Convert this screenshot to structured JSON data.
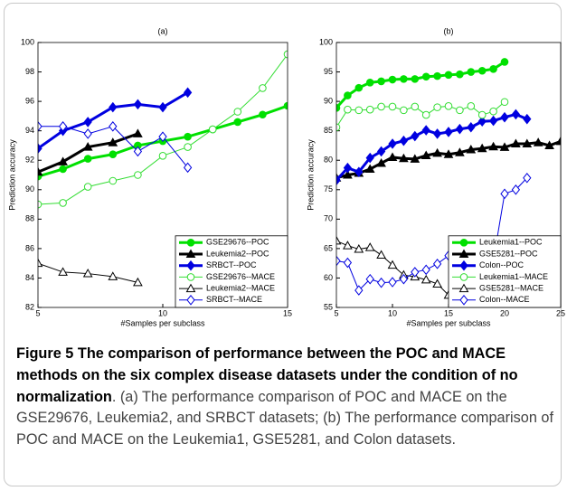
{
  "chart_data": [
    {
      "type": "line",
      "title": "(a)",
      "xlabel": "#Samples per subclass",
      "ylabel": "Prediction accuracy",
      "xlim": [
        5,
        15
      ],
      "xticks": [
        5,
        10,
        15
      ],
      "ylim": [
        82,
        100
      ],
      "yticks": [
        82,
        84,
        86,
        88,
        90,
        92,
        94,
        96,
        98,
        100
      ],
      "legend": "lower right",
      "series": [
        {
          "name": "GSE29676--POC",
          "color": "#00e000",
          "marker": "circle",
          "filled": true,
          "linewidth": 3,
          "x": [
            5,
            6,
            7,
            8,
            9,
            10,
            11,
            12,
            13,
            14,
            15
          ],
          "values": [
            90.9,
            91.4,
            92.1,
            92.4,
            93.0,
            93.3,
            93.6,
            94.1,
            94.6,
            95.1,
            95.7
          ]
        },
        {
          "name": "Leukemia2--POC",
          "color": "#000000",
          "marker": "triangle",
          "filled": true,
          "linewidth": 3,
          "x": [
            5,
            6,
            7,
            8,
            9
          ],
          "values": [
            91.2,
            91.9,
            92.9,
            93.2,
            93.8
          ]
        },
        {
          "name": "SRBCT--POC",
          "color": "#0000e0",
          "marker": "diamond",
          "filled": true,
          "linewidth": 3,
          "x": [
            5,
            6,
            7,
            8,
            9,
            10,
            11
          ],
          "values": [
            92.8,
            94.0,
            94.6,
            95.6,
            95.8,
            95.6,
            96.6
          ]
        },
        {
          "name": "GSE29676--MACE",
          "color": "#33dd33",
          "marker": "circle",
          "filled": false,
          "linewidth": 1,
          "x": [
            5,
            6,
            7,
            8,
            9,
            10,
            11,
            12,
            13,
            14,
            15
          ],
          "values": [
            89.0,
            89.1,
            90.2,
            90.6,
            91.0,
            92.3,
            92.9,
            94.1,
            95.3,
            96.9,
            99.2
          ]
        },
        {
          "name": "Leukemia2--MACE",
          "color": "#000000",
          "marker": "triangle",
          "filled": false,
          "linewidth": 1,
          "x": [
            5,
            6,
            7,
            8,
            9
          ],
          "values": [
            85.0,
            84.4,
            84.3,
            84.1,
            83.7
          ]
        },
        {
          "name": "SRBCT--MACE",
          "color": "#0000e0",
          "marker": "diamond",
          "filled": false,
          "linewidth": 1,
          "x": [
            5,
            6,
            7,
            8,
            9,
            10,
            11
          ],
          "values": [
            94.3,
            94.3,
            93.8,
            94.3,
            92.6,
            93.6,
            91.5
          ]
        }
      ]
    },
    {
      "type": "line",
      "title": "(b)",
      "xlabel": "#Samples per subclass",
      "ylabel": "Prediction accuracy",
      "xlim": [
        5,
        25
      ],
      "xticks": [
        5,
        10,
        15,
        20,
        25
      ],
      "ylim": [
        55,
        100
      ],
      "yticks": [
        55,
        60,
        65,
        70,
        75,
        80,
        85,
        90,
        95,
        100
      ],
      "legend": "lower right",
      "series": [
        {
          "name": "Leukemia1--POC",
          "color": "#00e000",
          "marker": "circle",
          "filled": true,
          "linewidth": 3,
          "x": [
            5,
            6,
            7,
            8,
            9,
            10,
            11,
            12,
            13,
            14,
            15,
            16,
            17,
            18,
            19,
            20
          ],
          "values": [
            88.9,
            91.0,
            92.3,
            93.2,
            93.4,
            93.7,
            93.8,
            93.8,
            94.2,
            94.3,
            94.5,
            94.6,
            95.0,
            95.2,
            95.5,
            96.7
          ]
        },
        {
          "name": "GSE5281--POC",
          "color": "#000000",
          "marker": "triangle",
          "filled": true,
          "linewidth": 3,
          "x": [
            5,
            6,
            7,
            8,
            9,
            10,
            11,
            12,
            13,
            14,
            15,
            16,
            17,
            18,
            19,
            20,
            21,
            22,
            23,
            24,
            25
          ],
          "values": [
            77.0,
            77.5,
            77.8,
            78.5,
            79.5,
            80.5,
            80.3,
            80.2,
            80.8,
            81.2,
            81.0,
            81.3,
            81.8,
            82.0,
            82.3,
            82.2,
            82.8,
            82.8,
            83.0,
            82.5,
            83.2
          ]
        },
        {
          "name": "Colon--POC",
          "color": "#0000e0",
          "marker": "diamond",
          "filled": true,
          "linewidth": 3,
          "x": [
            5,
            6,
            7,
            8,
            9,
            10,
            11,
            12,
            13,
            14,
            15,
            16,
            17,
            18,
            19,
            20,
            21,
            22
          ],
          "values": [
            76.6,
            78.7,
            78.0,
            80.4,
            81.5,
            82.8,
            83.3,
            84.1,
            85.1,
            84.5,
            84.8,
            85.3,
            85.6,
            86.6,
            86.7,
            87.3,
            87.8,
            87.0
          ]
        },
        {
          "name": "Leukemia1--MACE",
          "color": "#33dd33",
          "marker": "circle",
          "filled": false,
          "linewidth": 1,
          "x": [
            5,
            6,
            7,
            8,
            9,
            10,
            11,
            12,
            13,
            14,
            15,
            16,
            17,
            18,
            19,
            20
          ],
          "values": [
            85.6,
            88.6,
            88.5,
            88.6,
            89.1,
            89.1,
            88.5,
            89.1,
            87.7,
            89.0,
            89.2,
            88.5,
            89.2,
            87.7,
            88.3,
            89.9
          ]
        },
        {
          "name": "GSE5281--MACE",
          "color": "#000000",
          "marker": "triangle",
          "filled": false,
          "linewidth": 1,
          "x": [
            5,
            6,
            7,
            8,
            9,
            10,
            11,
            12,
            13,
            14,
            15,
            16,
            17,
            18,
            19,
            20,
            21,
            22,
            23,
            24,
            25
          ],
          "values": [
            66.3,
            65.5,
            64.9,
            65.2,
            63.9,
            62.2,
            60.5,
            60.2,
            59.7,
            59.0,
            57.1,
            58.5,
            57.8,
            55.9,
            55.8,
            55.5,
            55.3,
            55.7,
            55.5,
            55.6,
            56.2
          ]
        },
        {
          "name": "Colon--MACE",
          "color": "#0000e0",
          "marker": "diamond",
          "filled": false,
          "linewidth": 1,
          "x": [
            5,
            6,
            7,
            8,
            9,
            10,
            11,
            12,
            13,
            14,
            15,
            16,
            17,
            18,
            19,
            20,
            21,
            22
          ],
          "values": [
            62.9,
            62.6,
            57.9,
            59.8,
            59.2,
            59.3,
            59.8,
            61.0,
            61.4,
            62.4,
            63.8,
            64.1,
            63.0,
            62.0,
            63.0,
            74.3,
            75.0,
            77.0
          ]
        }
      ]
    }
  ],
  "caption": {
    "label": "Figure 5",
    "title": "The comparison of performance between the POC and MACE methods on the six complex disease datasets under the condition of no normalization",
    "text": ". (a) The performance comparison of POC and MACE on the GSE29676, Leukemia2, and SRBCT datasets; (b) The performance comparison of POC and MACE on the Leukemia1, GSE5281, and Colon datasets."
  }
}
